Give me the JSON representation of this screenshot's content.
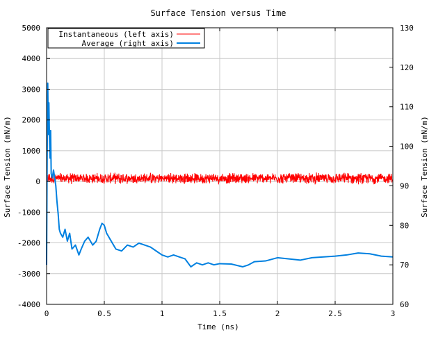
{
  "chart_data": {
    "type": "line",
    "title": "Surface Tension versus Time",
    "xlabel": "Time (ns)",
    "ylabel_left": "Surface Tension (mN/m)",
    "ylabel_right": "Surface Tension (mN/m)",
    "xlim": [
      0,
      3
    ],
    "ylim_left": [
      -4000,
      5000
    ],
    "ylim_right": [
      60,
      130
    ],
    "x_ticks": [
      "0",
      "0.5",
      "1",
      "1.5",
      "2",
      "2.5",
      "3"
    ],
    "y_left_ticks": [
      "-4000",
      "-3000",
      "-2000",
      "-1000",
      "0",
      "1000",
      "2000",
      "3000",
      "4000",
      "5000"
    ],
    "y_right_ticks": [
      "60",
      "70",
      "80",
      "90",
      "100",
      "110",
      "120",
      "130"
    ],
    "grid": true,
    "legend_position": "top-left",
    "series": [
      {
        "name": "Instantaneous (left axis)",
        "axis": "left",
        "color": "#ff0000",
        "style": "noisy",
        "x": [
          0.0,
          0.5,
          1.0,
          1.5,
          2.0,
          2.5,
          3.0
        ],
        "values": [
          100,
          100,
          100,
          100,
          100,
          100,
          100
        ],
        "noise_amplitude": 200
      },
      {
        "name": "Average (right axis)",
        "axis": "right",
        "color": "#0080e0",
        "x": [
          0.0,
          0.005,
          0.01,
          0.015,
          0.02,
          0.025,
          0.03,
          0.035,
          0.04,
          0.05,
          0.06,
          0.07,
          0.08,
          0.09,
          0.1,
          0.11,
          0.12,
          0.14,
          0.16,
          0.18,
          0.2,
          0.22,
          0.25,
          0.28,
          0.3,
          0.33,
          0.36,
          0.4,
          0.43,
          0.46,
          0.48,
          0.5,
          0.52,
          0.55,
          0.6,
          0.65,
          0.7,
          0.75,
          0.8,
          0.85,
          0.9,
          0.95,
          1.0,
          1.05,
          1.1,
          1.15,
          1.2,
          1.25,
          1.3,
          1.35,
          1.4,
          1.45,
          1.5,
          1.6,
          1.7,
          1.75,
          1.8,
          1.9,
          2.0,
          2.1,
          2.2,
          2.3,
          2.4,
          2.5,
          2.6,
          2.7,
          2.8,
          2.9,
          3.0
        ],
        "values": [
          70.0,
          98.0,
          116.0,
          103.0,
          111.0,
          102.0,
          97.0,
          104.0,
          93.0,
          92.0,
          94.0,
          92.0,
          90.0,
          86.0,
          83.0,
          79.0,
          78.0,
          77.0,
          79.0,
          76.0,
          78.0,
          74.0,
          75.0,
          72.5,
          74.0,
          76.0,
          77.0,
          75.0,
          76.0,
          79.0,
          80.5,
          80.0,
          78.0,
          76.5,
          74.0,
          73.5,
          75.0,
          74.5,
          75.5,
          75.0,
          74.5,
          73.5,
          72.5,
          72.0,
          72.5,
          72.0,
          71.5,
          69.5,
          70.5,
          70.0,
          70.5,
          70.0,
          70.3,
          70.2,
          69.5,
          70.0,
          70.8,
          71.0,
          71.8,
          71.5,
          71.2,
          71.8,
          72.0,
          72.2,
          72.5,
          73.0,
          72.8,
          72.2,
          72.0
        ]
      }
    ]
  }
}
